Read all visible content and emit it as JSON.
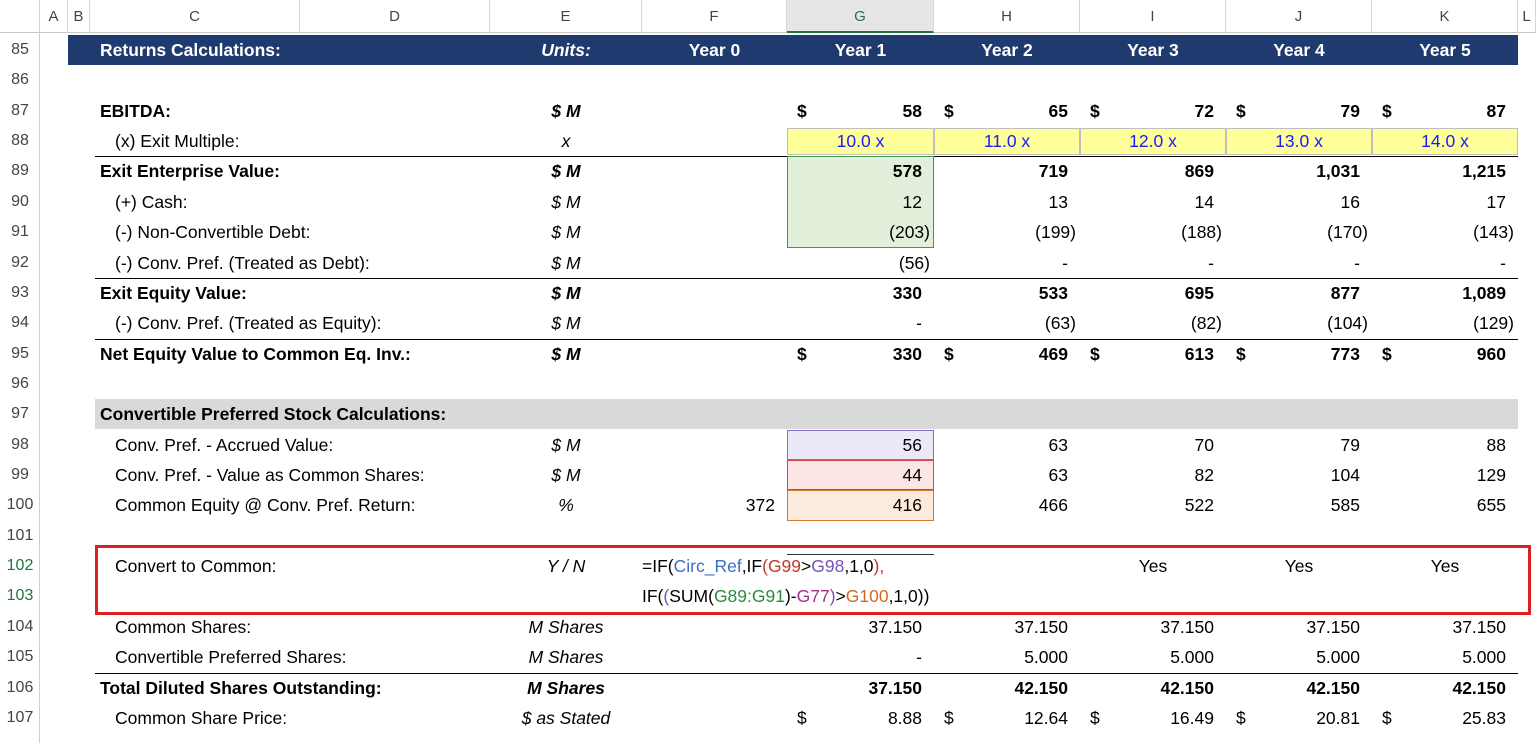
{
  "column_headers": [
    "A",
    "B",
    "C",
    "D",
    "E",
    "F",
    "G",
    "H",
    "I",
    "J",
    "K",
    "L"
  ],
  "rows": [
    {
      "number": "85",
      "label": "Returns Calculations:",
      "units": "Units:",
      "values": [
        "Year 0",
        "Year 1",
        "Year 2",
        "Year 3",
        "Year 4",
        "Year 5"
      ],
      "header": true
    },
    {
      "number": "86"
    },
    {
      "number": "87",
      "label": "EBITDA:",
      "units": "$ M",
      "currency": "$",
      "values": [
        null,
        "58",
        "65",
        "72",
        "79",
        "87"
      ],
      "bold": true
    },
    {
      "number": "88",
      "label": "(x) Exit Multiple:",
      "units": "x",
      "values": [
        null,
        "10.0 x",
        "11.0 x",
        "12.0 x",
        "13.0 x",
        "14.0 x"
      ],
      "indent": true,
      "input": true
    },
    {
      "number": "89",
      "label": "Exit Enterprise Value:",
      "units": "$ M",
      "values": [
        null,
        "578",
        "719",
        "869",
        "1,031",
        "1,215"
      ],
      "bold": true,
      "border_top": true
    },
    {
      "number": "90",
      "label": "(+) Cash:",
      "units": "$ M",
      "values": [
        null,
        "12",
        "13",
        "14",
        "16",
        "17"
      ],
      "indent": true
    },
    {
      "number": "91",
      "label": "(-) Non-Convertible Debt:",
      "units": "$ M",
      "values": [
        null,
        "(203)",
        "(199)",
        "(188)",
        "(170)",
        "(143)"
      ],
      "indent": true
    },
    {
      "number": "92",
      "label": "(-) Conv. Pref. (Treated as Debt):",
      "units": "$ M",
      "values": [
        null,
        "(56)",
        "-",
        "-",
        "-",
        "-"
      ],
      "indent": true
    },
    {
      "number": "93",
      "label": "Exit Equity Value:",
      "units": "$ M",
      "values": [
        null,
        "330",
        "533",
        "695",
        "877",
        "1,089"
      ],
      "bold": true,
      "border_top": true
    },
    {
      "number": "94",
      "label": "(-) Conv. Pref. (Treated as Equity):",
      "units": "$ M",
      "values": [
        null,
        "-",
        "(63)",
        "(82)",
        "(104)",
        "(129)"
      ],
      "indent": true
    },
    {
      "number": "95",
      "label": "Net Equity Value to Common Eq. Inv.:",
      "units": "$ M",
      "currency": "$",
      "values": [
        null,
        "330",
        "469",
        "613",
        "773",
        "960"
      ],
      "bold": true,
      "border_top": true
    },
    {
      "number": "96"
    },
    {
      "number": "97",
      "label": "Convertible Preferred Stock Calculations:",
      "bold": true,
      "section": true
    },
    {
      "number": "98",
      "label": "Conv. Pref. - Accrued Value:",
      "units": "$ M",
      "values": [
        null,
        "56",
        "63",
        "70",
        "79",
        "88"
      ],
      "indent": true
    },
    {
      "number": "99",
      "label": "Conv. Pref. - Value as Common Shares:",
      "units": "$ M",
      "values": [
        null,
        "44",
        "63",
        "82",
        "104",
        "129"
      ],
      "indent": true
    },
    {
      "number": "100",
      "label": "Common Equity @ Conv. Pref. Return:",
      "units": "%",
      "values": [
        "372",
        "416",
        "466",
        "522",
        "585",
        "655"
      ],
      "indent": true
    },
    {
      "number": "101"
    },
    {
      "number": "102",
      "label": "Convert to Common:",
      "units": "Y / N",
      "values": [
        null,
        null,
        null,
        "Yes",
        "Yes",
        "Yes"
      ],
      "indent": true,
      "centered": true
    },
    {
      "number": "103"
    },
    {
      "number": "104",
      "label": "Common Shares:",
      "units": "M Shares",
      "values": [
        null,
        "37.150",
        "37.150",
        "37.150",
        "37.150",
        "37.150"
      ],
      "indent": true
    },
    {
      "number": "105",
      "label": "Convertible Preferred Shares:",
      "units": "M Shares",
      "values": [
        null,
        "-",
        "5.000",
        "5.000",
        "5.000",
        "5.000"
      ],
      "indent": true
    },
    {
      "number": "106",
      "label": "Total Diluted Shares Outstanding:",
      "units": "M Shares",
      "values": [
        null,
        "37.150",
        "42.150",
        "42.150",
        "42.150",
        "42.150"
      ],
      "bold": true,
      "border_top": true
    },
    {
      "number": "107",
      "label": "Common Share Price:",
      "units": "$ as Stated",
      "currency": "$",
      "values": [
        null,
        "8.88",
        "12.64",
        "16.49",
        "20.81",
        "25.83"
      ],
      "indent": true
    }
  ],
  "formula": {
    "lines": [
      [
        {
          "text": "=IF(",
          "color": "#000000"
        },
        {
          "text": "Circ_Ref",
          "color": "#3d6fc2"
        },
        {
          "text": ",IF",
          "color": "#000000"
        },
        {
          "text": "(",
          "color": "#c0392b"
        },
        {
          "text": "G99",
          "color": "#c0392b"
        },
        {
          "text": ">",
          "color": "#000000"
        },
        {
          "text": "G98",
          "color": "#7a52b3"
        },
        {
          "text": ",1,0",
          "color": "#000000"
        },
        {
          "text": "),",
          "color": "#c0392b"
        }
      ],
      [
        {
          "text": "IF(",
          "color": "#000000"
        },
        {
          "text": "(",
          "color": "#7a52b3"
        },
        {
          "text": "SUM(",
          "color": "#000000"
        },
        {
          "text": "G89:G91",
          "color": "#2e8b3e"
        },
        {
          "text": ")-",
          "color": "#000000"
        },
        {
          "text": "G77",
          "color": "#a0308a"
        },
        {
          "text": ")",
          "color": "#7a52b3"
        },
        {
          "text": ">",
          "color": "#000000"
        },
        {
          "text": "G100",
          "color": "#d2691e"
        },
        {
          "text": ",1,0))",
          "color": "#000000"
        }
      ]
    ]
  }
}
